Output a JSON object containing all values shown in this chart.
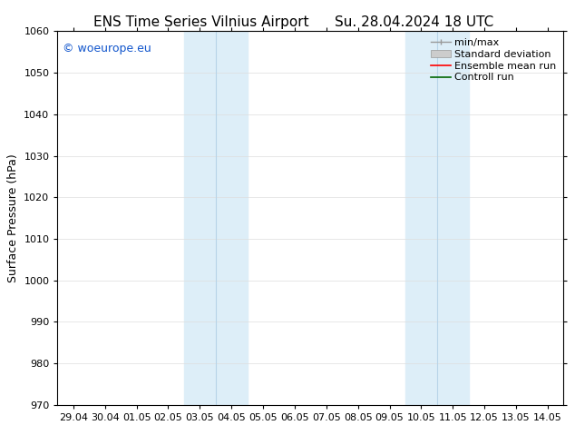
{
  "title_left": "ENS Time Series Vilnius Airport",
  "title_right": "Su. 28.04.2024 18 UTC",
  "ylabel": "Surface Pressure (hPa)",
  "ylim": [
    970,
    1060
  ],
  "yticks": [
    970,
    980,
    990,
    1000,
    1010,
    1020,
    1030,
    1040,
    1050,
    1060
  ],
  "xtick_labels": [
    "29.04",
    "30.04",
    "01.05",
    "02.05",
    "03.05",
    "04.05",
    "05.05",
    "06.05",
    "07.05",
    "08.05",
    "09.05",
    "10.05",
    "11.05",
    "12.05",
    "13.05",
    "14.05"
  ],
  "watermark": "© woeurope.eu",
  "watermark_color": "#1155cc",
  "background_color": "#ffffff",
  "plot_bg_color": "#ffffff",
  "shaded_regions": [
    {
      "xstart": 5,
      "xend": 7,
      "color": "#ddeef8"
    },
    {
      "xstart": 12,
      "xend": 14,
      "color": "#ddeef8"
    }
  ],
  "shaded_dividers": [
    6,
    13
  ],
  "legend_entries": [
    {
      "label": "min/max",
      "color": "#aaaaaa",
      "style": "minmax"
    },
    {
      "label": "Standard deviation",
      "color": "#cccccc",
      "style": "stddev"
    },
    {
      "label": "Ensemble mean run",
      "color": "#ff0000",
      "style": "line"
    },
    {
      "label": "Controll run",
      "color": "#006600",
      "style": "line"
    }
  ],
  "title_fontsize": 11,
  "axis_fontsize": 9,
  "tick_fontsize": 8,
  "legend_fontsize": 8
}
